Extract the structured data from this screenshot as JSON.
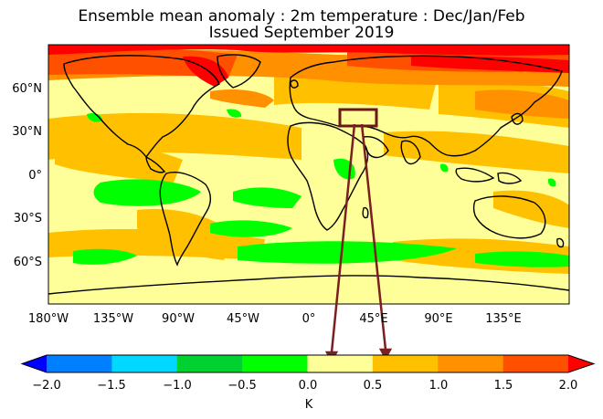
{
  "title_line1": "Ensemble mean anomaly : 2m temperature : Dec/Jan/Feb",
  "title_line2": "Issued September 2019",
  "map": {
    "lon_ticks": [
      "180°W",
      "135°W",
      "90°W",
      "45°W",
      "0°",
      "45°E",
      "90°E",
      "135°E"
    ],
    "lat_ticks": [
      "60°N",
      "30°N",
      "0°",
      "30°S",
      "60°S"
    ],
    "highlight_region": "box-over-turkey-caucasus"
  },
  "colorbar": {
    "unit": "K",
    "ticks": [
      "−2.0",
      "−1.5",
      "−1.0",
      "−0.5",
      "0.0",
      "0.5",
      "1.0",
      "1.5",
      "2.0"
    ],
    "colors": [
      "#0000ff",
      "#0080ff",
      "#00d8ff",
      "#00d030",
      "#00ff00",
      "#ffff99",
      "#ffc000",
      "#ff9000",
      "#ff5000",
      "#ff0000"
    ]
  },
  "colors": {
    "land_outline": "#000000",
    "arrow": "#7a2020"
  }
}
